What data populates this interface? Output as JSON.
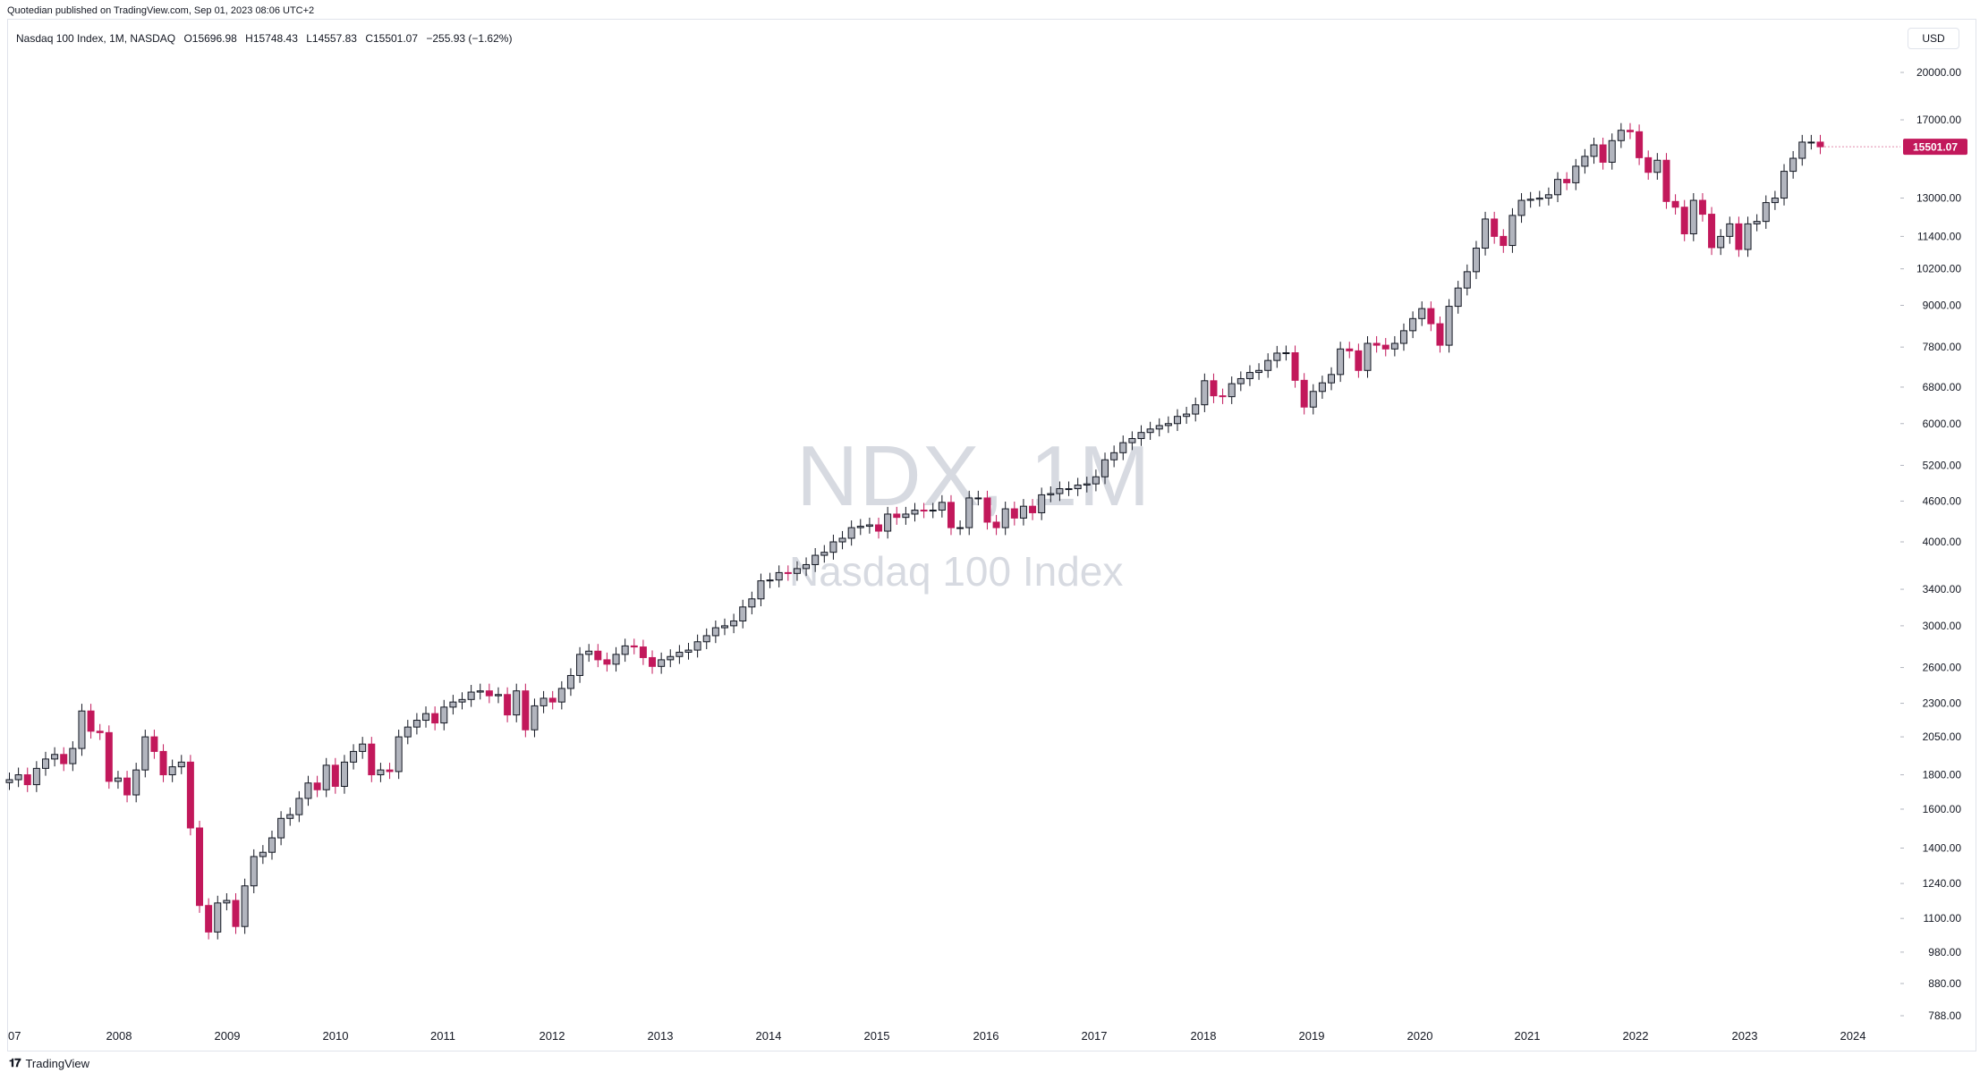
{
  "header": {
    "published": "Quotedian published on TradingView.com, Sep 01, 2023 08:06 UTC+2"
  },
  "legend": {
    "symbol": "Nasdaq 100 Index, 1M, NASDAQ",
    "open": "O15696.98",
    "high": "H15748.43",
    "low": "L14557.83",
    "close": "C15501.07",
    "change": "−255.93 (−1.62%)"
  },
  "currency": "USD",
  "watermark": {
    "symbol": "NDX, 1M",
    "name": "Nasdaq 100 Index"
  },
  "footer": {
    "brand": "TradingView",
    "icon": "tradingview-logo-icon"
  },
  "colors": {
    "up": "#b2b5be",
    "down": "#c2185b",
    "outline": "#131722",
    "last_price_bg": "#c2185b"
  },
  "chart_data": {
    "type": "candlestick",
    "interval": "1M",
    "scale": "log",
    "y_ticks": [
      788,
      880,
      980,
      1100,
      1240,
      1400,
      1600,
      1800,
      2050,
      2300,
      2600,
      3000,
      3400,
      4000,
      4600,
      5200,
      6000,
      6800,
      7800,
      9000,
      10200,
      11400,
      13000,
      17000,
      20000
    ],
    "y_tick_labels": [
      "788.00",
      "880.00",
      "980.00",
      "1100.00",
      "1240.00",
      "1400.00",
      "1600.00",
      "1800.00",
      "2050.00",
      "2300.00",
      "2600.00",
      "3000.00",
      "3400.00",
      "4000.00",
      "4600.00",
      "5200.00",
      "6000.00",
      "6800.00",
      "7800.00",
      "9000.00",
      "10200.00",
      "11400.00",
      "13000.00",
      "17000.00",
      "20000.00"
    ],
    "x_tick_labels": [
      "07",
      "2008",
      "2009",
      "2010",
      "2011",
      "2012",
      "2013",
      "2014",
      "2015",
      "2016",
      "2017",
      "2018",
      "2019",
      "2020",
      "2021",
      "2022",
      "2023",
      "2024"
    ],
    "last_price": 15501.07,
    "last_price_label": "15501.07",
    "closes": [
      1770,
      1800,
      1740,
      1840,
      1900,
      1930,
      1870,
      1970,
      2240,
      2090,
      2080,
      1760,
      1780,
      1680,
      1830,
      2050,
      1950,
      1800,
      1850,
      1880,
      1500,
      1150,
      1050,
      1160,
      1170,
      1070,
      1230,
      1360,
      1380,
      1450,
      1550,
      1570,
      1660,
      1750,
      1710,
      1860,
      1730,
      1880,
      1950,
      2000,
      1800,
      1830,
      1820,
      2050,
      2120,
      2170,
      2220,
      2150,
      2270,
      2310,
      2330,
      2390,
      2400,
      2360,
      2370,
      2210,
      2400,
      2100,
      2280,
      2340,
      2310,
      2420,
      2530,
      2720,
      2750,
      2670,
      2630,
      2720,
      2800,
      2790,
      2690,
      2610,
      2670,
      2700,
      2740,
      2760,
      2840,
      2900,
      2980,
      3000,
      3050,
      3200,
      3290,
      3500,
      3510,
      3600,
      3590,
      3650,
      3700,
      3820,
      3860,
      4000,
      4050,
      4200,
      4220,
      4240,
      4150,
      4400,
      4350,
      4400,
      4460,
      4450,
      4460,
      4580,
      4200,
      4200,
      4650,
      4650,
      4280,
      4200,
      4480,
      4340,
      4520,
      4420,
      4700,
      4720,
      4800,
      4800,
      4860,
      4880,
      5000,
      5300,
      5430,
      5620,
      5700,
      5820,
      5890,
      5960,
      6000,
      6150,
      6200,
      6400,
      6950,
      6600,
      6580,
      6880,
      7000,
      7150,
      7200,
      7450,
      7640,
      7650,
      6960,
      6350,
      6700,
      6900,
      7100,
      7750,
      7700,
      7200,
      7900,
      7850,
      7750,
      7900,
      8250,
      8600,
      8900,
      8450,
      7850,
      8970,
      9550,
      10100,
      10950,
      12100,
      11400,
      11050,
      12250,
      12900,
      12950,
      13000,
      13150,
      13860,
      13700,
      14500,
      15000,
      15600,
      14700,
      15830,
      16400,
      16320,
      14930,
      14200,
      14800,
      12850,
      12600,
      11500,
      12900,
      12300,
      10970,
      11400,
      11900,
      10900,
      11900,
      12000,
      12800,
      13000,
      14250,
      14900,
      15750,
      15750,
      15501.07
    ]
  }
}
